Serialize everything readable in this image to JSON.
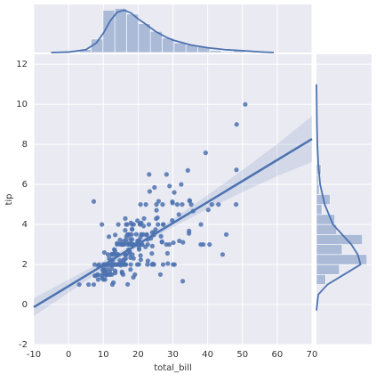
{
  "chart_data": {
    "type": "scatter",
    "x_label": "total_bill",
    "y_label": "tip",
    "color": "#4c72b0",
    "grid": true,
    "xlim": [
      -10,
      70
    ],
    "ylim": [
      -2,
      12.5
    ],
    "xticks": [
      -10,
      0,
      10,
      20,
      30,
      40,
      50,
      60,
      70
    ],
    "yticks": [
      -2,
      0,
      2,
      4,
      6,
      8,
      10,
      12
    ],
    "x": [
      16.99,
      10.34,
      21.01,
      23.68,
      24.59,
      25.29,
      8.77,
      26.88,
      15.04,
      14.78,
      10.27,
      35.26,
      15.42,
      18.43,
      14.83,
      21.58,
      10.33,
      16.29,
      16.97,
      20.65,
      17.92,
      20.29,
      15.77,
      39.42,
      19.82,
      17.81,
      13.37,
      12.69,
      21.7,
      19.65,
      9.55,
      18.35,
      15.06,
      20.69,
      17.78,
      24.06,
      16.31,
      16.93,
      18.69,
      31.27,
      16.04,
      17.46,
      13.94,
      9.68,
      30.4,
      18.29,
      22.23,
      32.4,
      28.55,
      18.04,
      12.54,
      10.29,
      34.81,
      9.94,
      25.56,
      19.49,
      38.01,
      26.41,
      11.24,
      48.27,
      20.29,
      13.81,
      11.02,
      18.29,
      17.59,
      20.08,
      16.45,
      3.07,
      20.23,
      15.01,
      12.02,
      17.07,
      26.86,
      25.28,
      14.73,
      10.51,
      17.92,
      27.2,
      22.76,
      17.29,
      19.44,
      16.66,
      10.07,
      32.68,
      15.98,
      34.83,
      13.03,
      18.28,
      24.71,
      21.16,
      28.97,
      22.49,
      5.75,
      16.32,
      22.75,
      40.17,
      27.28,
      12.03,
      21.01,
      12.46,
      11.35,
      15.38,
      44.3,
      22.42,
      20.92,
      15.36,
      20.49,
      25.21,
      18.24,
      14.31,
      14.0,
      7.25,
      38.07,
      23.95,
      25.71,
      17.31,
      29.93,
      10.65,
      12.43,
      24.08,
      11.69,
      13.42,
      14.26,
      15.95,
      12.48,
      29.8,
      8.52,
      14.52,
      11.38,
      22.82,
      19.08,
      20.27,
      11.17,
      12.26,
      18.26,
      8.51,
      10.33,
      14.15,
      16.0,
      13.16,
      17.47,
      34.3,
      41.19,
      27.05,
      16.43,
      8.35,
      18.64,
      11.87,
      9.78,
      7.51,
      14.07,
      13.13,
      17.26,
      24.55,
      19.77,
      29.85,
      48.17,
      25.0,
      13.39,
      16.49,
      21.5,
      12.66,
      16.21,
      13.81,
      17.51,
      24.52,
      20.76,
      31.71,
      10.59,
      10.63,
      50.81,
      15.81,
      7.25,
      31.85,
      16.82,
      32.9,
      17.89,
      14.48,
      9.6,
      34.63,
      34.65,
      23.33,
      45.35,
      23.17,
      40.55,
      20.69,
      20.9,
      30.46,
      18.15,
      23.1,
      15.69,
      19.81,
      28.44,
      15.48,
      16.58,
      7.56,
      10.34,
      43.11,
      13.0,
      13.51,
      18.71,
      12.74,
      13.0,
      16.4,
      20.53,
      16.47,
      26.59,
      38.73,
      24.27,
      12.76,
      30.06,
      25.89,
      48.33,
      13.27,
      28.17,
      12.9,
      28.15,
      11.59,
      7.74,
      30.14,
      12.16,
      13.42,
      8.58,
      15.98,
      13.42,
      16.27,
      10.09,
      20.45,
      13.28,
      22.12,
      24.01,
      15.69,
      11.61,
      10.77,
      15.53,
      10.07,
      12.6,
      32.83,
      35.83,
      29.03,
      27.18,
      22.67,
      17.82,
      18.78
    ],
    "values": [
      1.01,
      1.66,
      3.5,
      3.31,
      3.61,
      4.71,
      2.0,
      3.12,
      1.96,
      3.23,
      1.71,
      5.0,
      1.57,
      3.0,
      3.02,
      3.92,
      1.67,
      3.71,
      3.5,
      3.35,
      4.08,
      2.75,
      2.23,
      7.58,
      3.18,
      2.34,
      2.0,
      2.0,
      4.3,
      3.0,
      1.45,
      2.5,
      3.0,
      2.45,
      3.27,
      3.6,
      2.0,
      3.07,
      2.31,
      5.0,
      2.24,
      2.54,
      3.06,
      1.32,
      5.6,
      3.0,
      5.0,
      6.0,
      2.05,
      3.0,
      2.5,
      2.6,
      5.2,
      1.56,
      4.34,
      3.51,
      3.0,
      1.5,
      1.76,
      6.73,
      3.21,
      2.0,
      1.98,
      3.76,
      2.64,
      3.15,
      2.47,
      1.0,
      2.01,
      2.09,
      1.97,
      3.0,
      3.14,
      5.0,
      2.2,
      1.25,
      3.08,
      4.0,
      3.0,
      2.71,
      3.0,
      3.4,
      1.83,
      5.0,
      2.03,
      5.17,
      2.0,
      4.0,
      5.85,
      3.0,
      3.0,
      3.5,
      1.0,
      4.3,
      3.25,
      4.73,
      4.0,
      1.5,
      3.0,
      1.5,
      2.5,
      3.0,
      2.5,
      3.48,
      4.08,
      1.64,
      4.06,
      4.29,
      3.76,
      4.0,
      3.0,
      1.0,
      4.0,
      2.55,
      4.0,
      3.5,
      5.07,
      1.5,
      1.8,
      2.92,
      2.31,
      1.68,
      2.5,
      2.0,
      2.52,
      4.2,
      1.48,
      2.0,
      2.0,
      2.18,
      1.5,
      2.83,
      1.5,
      2.0,
      3.25,
      1.25,
      2.0,
      2.0,
      2.0,
      2.75,
      3.5,
      6.7,
      5.0,
      5.0,
      2.3,
      1.5,
      1.36,
      1.63,
      1.73,
      2.0,
      2.5,
      2.0,
      2.74,
      2.0,
      2.0,
      5.14,
      5.0,
      3.75,
      2.61,
      2.0,
      3.5,
      2.5,
      2.0,
      2.0,
      3.0,
      3.48,
      2.24,
      4.5,
      1.61,
      2.0,
      10.0,
      3.16,
      5.15,
      3.18,
      4.0,
      3.11,
      2.0,
      2.0,
      4.0,
      3.55,
      3.68,
      5.65,
      3.5,
      6.5,
      3.0,
      5.0,
      3.5,
      2.0,
      3.5,
      4.0,
      1.5,
      4.19,
      2.56,
      2.02,
      4.0,
      1.44,
      2.0,
      5.0,
      2.0,
      2.0,
      4.0,
      2.01,
      2.0,
      2.5,
      4.0,
      3.23,
      3.41,
      3.0,
      2.03,
      2.23,
      2.0,
      5.16,
      9.0,
      2.5,
      6.5,
      1.1,
      3.0,
      1.5,
      1.44,
      3.09,
      2.2,
      3.48,
      1.92,
      3.0,
      1.58,
      2.5,
      2.0,
      3.0,
      2.72,
      2.88,
      2.0,
      3.0,
      3.39,
      1.47,
      3.0,
      1.25,
      1.0,
      1.17,
      4.67,
      5.92,
      2.0,
      2.0,
      1.75,
      3.0
    ],
    "fit": {
      "x": [
        -10,
        70
      ],
      "values": [
        -0.13,
        8.27
      ]
    },
    "ci": {
      "x": [
        -10,
        0,
        10,
        20,
        30,
        40,
        50,
        60,
        70
      ],
      "lower": [
        -0.58,
        0.59,
        1.77,
        2.89,
        3.87,
        4.77,
        5.62,
        6.42,
        7.12
      ],
      "upper": [
        0.32,
        1.25,
        2.17,
        3.15,
        4.27,
        5.47,
        6.72,
        8.02,
        9.42
      ]
    },
    "x_marginal": {
      "type": "histogram",
      "lim": [
        0,
        50
      ],
      "bins": [
        3.07,
        6.48,
        9.89,
        13.3,
        16.71,
        20.12,
        23.53,
        26.94,
        30.35,
        33.76,
        37.17,
        40.58,
        43.99,
        47.4,
        50.81
      ],
      "counts": [
        3,
        14,
        44,
        46,
        40,
        30,
        22,
        15,
        10,
        8,
        6,
        2,
        1,
        3
      ],
      "kde": {
        "x": [
          -5,
          0,
          5,
          8,
          10,
          12,
          14,
          16,
          18,
          20,
          22,
          25,
          28,
          30,
          35,
          40,
          45,
          50,
          55,
          59
        ],
        "values": [
          0,
          0.5,
          3,
          10,
          20,
          33,
          42,
          44,
          41,
          35,
          30,
          22,
          16,
          13,
          8,
          5,
          3,
          2,
          0.7,
          0
        ]
      }
    },
    "y_marginal": {
      "type": "histogram",
      "lim": [
        0,
        60
      ],
      "bins": [
        1,
        1.5,
        2,
        2.5,
        3,
        3.5,
        4,
        4.5,
        5,
        5.5,
        6,
        6.5,
        7,
        7.5,
        8,
        8.5,
        9,
        9.5,
        10
      ],
      "counts": [
        10,
        25,
        55,
        28,
        50,
        22,
        20,
        6,
        15,
        3,
        2,
        5,
        0,
        1,
        0,
        0,
        1,
        1
      ],
      "kde": {
        "x": [
          -0.3,
          0.5,
          1,
          1.5,
          2,
          2.5,
          3,
          3.5,
          4,
          5,
          6,
          7,
          8,
          9,
          10,
          11
        ],
        "values": [
          0,
          2,
          12,
          30,
          48,
          45,
          38,
          28,
          18,
          9,
          4,
          2,
          1,
          0.5,
          0.3,
          0
        ]
      }
    }
  }
}
